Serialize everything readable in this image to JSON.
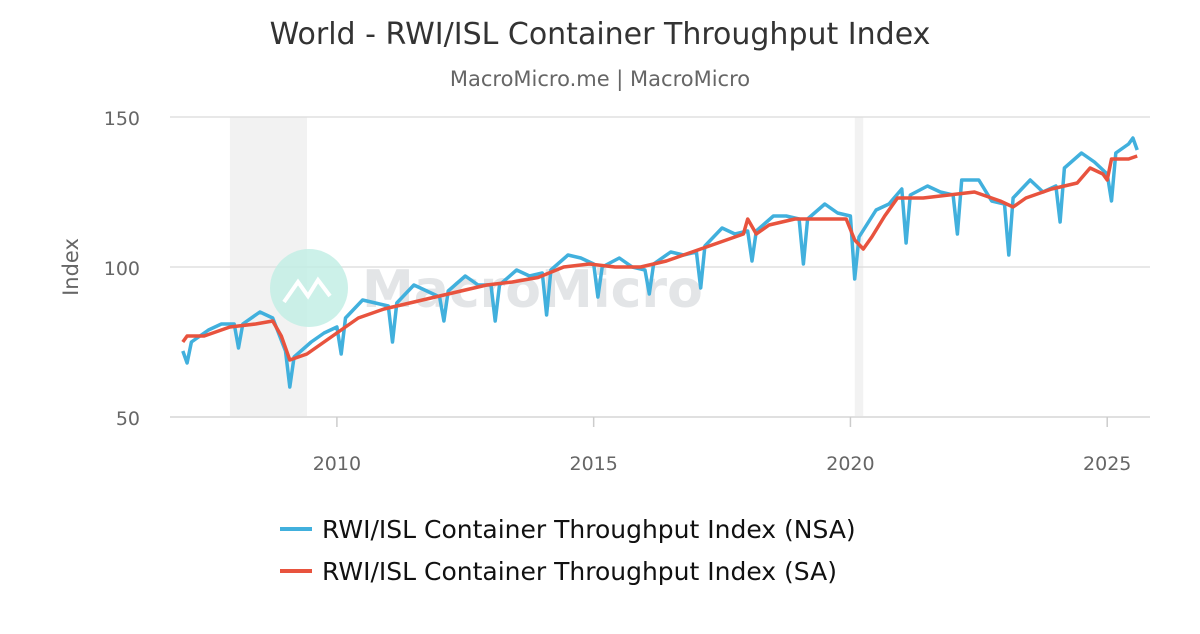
{
  "chart_data": {
    "type": "line",
    "title": "World - RWI/ISL Container Throughput Index",
    "subtitle": "MacroMicro.me | MacroMicro",
    "ylabel": "Index",
    "xlabel": "",
    "ylim": [
      50,
      150
    ],
    "xlim": [
      "2006-10",
      "2025-11"
    ],
    "yticks": [
      50,
      100,
      150
    ],
    "xticks": [
      2010,
      2015,
      2020,
      2025
    ],
    "grid": "horizontal",
    "legend_position": "bottom",
    "watermark": "MacroMicro",
    "recession_bands": [
      [
        "2007-12",
        "2009-06"
      ],
      [
        "2020-02",
        "2020-04"
      ]
    ],
    "series": [
      {
        "name": "RWI/ISL Container Throughput Index (NSA)",
        "color": "#41b0dd",
        "points": [
          [
            "2007-01",
            72
          ],
          [
            "2007-02",
            68
          ],
          [
            "2007-03",
            75
          ],
          [
            "2007-07",
            79
          ],
          [
            "2007-10",
            81
          ],
          [
            "2008-01",
            81
          ],
          [
            "2008-02",
            73
          ],
          [
            "2008-03",
            81
          ],
          [
            "2008-07",
            85
          ],
          [
            "2008-10",
            83
          ],
          [
            "2009-01",
            72
          ],
          [
            "2009-02",
            60
          ],
          [
            "2009-03",
            70
          ],
          [
            "2009-07",
            75
          ],
          [
            "2009-10",
            78
          ],
          [
            "2010-01",
            80
          ],
          [
            "2010-02",
            71
          ],
          [
            "2010-03",
            83
          ],
          [
            "2010-07",
            89
          ],
          [
            "2010-10",
            88
          ],
          [
            "2011-01",
            87
          ],
          [
            "2011-02",
            75
          ],
          [
            "2011-03",
            88
          ],
          [
            "2011-07",
            94
          ],
          [
            "2011-10",
            92
          ],
          [
            "2012-01",
            90
          ],
          [
            "2012-02",
            82
          ],
          [
            "2012-03",
            92
          ],
          [
            "2012-07",
            97
          ],
          [
            "2012-10",
            94
          ],
          [
            "2013-01",
            94
          ],
          [
            "2013-02",
            82
          ],
          [
            "2013-03",
            94
          ],
          [
            "2013-07",
            99
          ],
          [
            "2013-10",
            97
          ],
          [
            "2014-01",
            98
          ],
          [
            "2014-02",
            84
          ],
          [
            "2014-03",
            99
          ],
          [
            "2014-07",
            104
          ],
          [
            "2014-10",
            103
          ],
          [
            "2015-01",
            101
          ],
          [
            "2015-02",
            90
          ],
          [
            "2015-03",
            100
          ],
          [
            "2015-07",
            103
          ],
          [
            "2015-10",
            100
          ],
          [
            "2016-01",
            99
          ],
          [
            "2016-02",
            91
          ],
          [
            "2016-03",
            101
          ],
          [
            "2016-07",
            105
          ],
          [
            "2016-10",
            104
          ],
          [
            "2017-01",
            105
          ],
          [
            "2017-02",
            93
          ],
          [
            "2017-03",
            107
          ],
          [
            "2017-07",
            113
          ],
          [
            "2017-10",
            111
          ],
          [
            "2018-01",
            112
          ],
          [
            "2018-02",
            102
          ],
          [
            "2018-03",
            112
          ],
          [
            "2018-07",
            117
          ],
          [
            "2018-10",
            117
          ],
          [
            "2019-01",
            116
          ],
          [
            "2019-02",
            101
          ],
          [
            "2019-03",
            116
          ],
          [
            "2019-07",
            121
          ],
          [
            "2019-10",
            118
          ],
          [
            "2020-01",
            117
          ],
          [
            "2020-02",
            96
          ],
          [
            "2020-03",
            110
          ],
          [
            "2020-07",
            119
          ],
          [
            "2020-10",
            121
          ],
          [
            "2021-01",
            126
          ],
          [
            "2021-02",
            108
          ],
          [
            "2021-03",
            124
          ],
          [
            "2021-07",
            127
          ],
          [
            "2021-10",
            125
          ],
          [
            "2022-01",
            124
          ],
          [
            "2022-02",
            111
          ],
          [
            "2022-03",
            129
          ],
          [
            "2022-07",
            129
          ],
          [
            "2022-10",
            122
          ],
          [
            "2023-01",
            121
          ],
          [
            "2023-02",
            104
          ],
          [
            "2023-03",
            123
          ],
          [
            "2023-07",
            129
          ],
          [
            "2023-10",
            125
          ],
          [
            "2024-01",
            127
          ],
          [
            "2024-02",
            115
          ],
          [
            "2024-03",
            133
          ],
          [
            "2024-07",
            138
          ],
          [
            "2024-10",
            135
          ],
          [
            "2025-01",
            131
          ],
          [
            "2025-02",
            122
          ],
          [
            "2025-03",
            138
          ],
          [
            "2025-06",
            141
          ],
          [
            "2025-07",
            143
          ],
          [
            "2025-08",
            139
          ]
        ]
      },
      {
        "name": "RWI/ISL Container Throughput Index (SA)",
        "color": "#e8533e",
        "points": [
          [
            "2007-01",
            75
          ],
          [
            "2007-02",
            77
          ],
          [
            "2007-06",
            77
          ],
          [
            "2007-12",
            80
          ],
          [
            "2008-06",
            81
          ],
          [
            "2008-10",
            82
          ],
          [
            "2008-12",
            77
          ],
          [
            "2009-02",
            69
          ],
          [
            "2009-06",
            71
          ],
          [
            "2009-12",
            77
          ],
          [
            "2010-06",
            83
          ],
          [
            "2010-12",
            86
          ],
          [
            "2011-06",
            88
          ],
          [
            "2011-12",
            90
          ],
          [
            "2012-06",
            92
          ],
          [
            "2012-12",
            94
          ],
          [
            "2013-06",
            95
          ],
          [
            "2013-12",
            96.5
          ],
          [
            "2014-06",
            100
          ],
          [
            "2014-12",
            101
          ],
          [
            "2015-06",
            100
          ],
          [
            "2015-12",
            100
          ],
          [
            "2016-06",
            102
          ],
          [
            "2016-12",
            105
          ],
          [
            "2017-06",
            108
          ],
          [
            "2017-12",
            111
          ],
          [
            "2018-01",
            116
          ],
          [
            "2018-03",
            111
          ],
          [
            "2018-06",
            114
          ],
          [
            "2018-12",
            116
          ],
          [
            "2019-06",
            116
          ],
          [
            "2019-12",
            116
          ],
          [
            "2020-02",
            109
          ],
          [
            "2020-04",
            106
          ],
          [
            "2020-06",
            110
          ],
          [
            "2020-09",
            117
          ],
          [
            "2020-12",
            123
          ],
          [
            "2021-06",
            123
          ],
          [
            "2021-12",
            124
          ],
          [
            "2022-06",
            125
          ],
          [
            "2022-12",
            122
          ],
          [
            "2023-03",
            120
          ],
          [
            "2023-06",
            123
          ],
          [
            "2023-12",
            126
          ],
          [
            "2024-06",
            128
          ],
          [
            "2024-09",
            133
          ],
          [
            "2024-12",
            131
          ],
          [
            "2025-01",
            129
          ],
          [
            "2025-02",
            136
          ],
          [
            "2025-06",
            136
          ],
          [
            "2025-08",
            137
          ]
        ]
      }
    ]
  }
}
